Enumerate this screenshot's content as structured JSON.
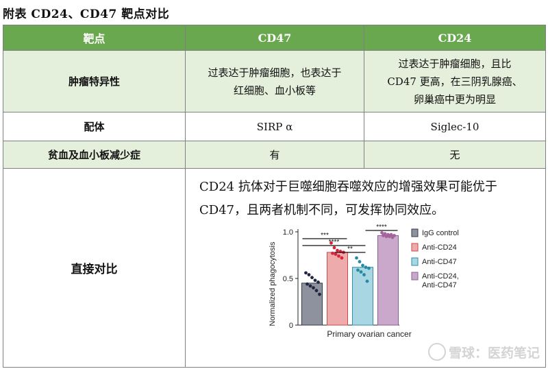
{
  "caption": "附表 CD24、CD47 靶点对比",
  "table": {
    "headers": [
      "靶点",
      "CD47",
      "CD24"
    ],
    "rows": [
      {
        "label": "肿瘤特异性",
        "cd47": [
          "过表达于肿瘤细胞，也表达于",
          "红细胞、血小板等"
        ],
        "cd24": [
          "过表达于肿瘤细胞，且比",
          "CD47 更高，在三阴乳腺癌、",
          "卵巢癌中更为明显"
        ]
      },
      {
        "label": "配体",
        "cd47": "SIRP α",
        "cd24": "Siglec-10"
      },
      {
        "label": "贫血及血小板减少症",
        "cd47": "有",
        "cd24": "无"
      },
      {
        "label": "直接对比",
        "summary": "CD24 抗体对于巨噬细胞吞噬效应的增强效果可能优于 CD47，且两者机制不同，可发挥协同效应。"
      }
    ]
  },
  "watermark": "雪球：医药笔记",
  "chart_data": {
    "type": "bar",
    "xlabel": "Primary ovarian cancer",
    "ylabel": "Normalized phagocytosis",
    "ylim": [
      0,
      1.0
    ],
    "yticks": [
      "0",
      "0.5",
      "1.0"
    ],
    "categories": [
      "IgG control",
      "Anti-CD24",
      "Anti-CD47",
      "Anti-CD24, Anti-CD47"
    ],
    "legend": [
      "IgG control",
      "Anti-CD24",
      "Anti-CD47",
      "Anti-CD24,\nAnti-CD47"
    ],
    "legend_position": "right",
    "values": [
      0.45,
      0.78,
      0.62,
      0.96
    ],
    "points": [
      [
        0.56,
        0.54,
        0.51,
        0.48,
        0.46,
        0.44,
        0.42,
        0.4,
        0.37,
        0.33
      ],
      [
        0.88,
        0.83,
        0.8,
        0.79,
        0.78,
        0.77,
        0.76,
        0.74,
        0.72
      ],
      [
        0.72,
        0.68,
        0.64,
        0.62,
        0.61,
        0.59,
        0.57,
        0.54,
        0.47
      ],
      [
        0.99,
        0.98,
        0.97,
        0.97,
        0.96,
        0.96,
        0.95,
        0.95,
        0.94
      ]
    ],
    "colors": {
      "fill": [
        "#8e919e",
        "#eeabab",
        "#a9d6e3",
        "#c9a8cc"
      ],
      "edge": [
        "#333a48",
        "#c94a4a",
        "#2d8ea6",
        "#8a5f92"
      ],
      "dot": [
        "#202840",
        "#d7233c",
        "#258ba3",
        "#a4639a"
      ]
    },
    "significance": [
      {
        "label": "****",
        "from": 0,
        "to": 3
      },
      {
        "label": "***",
        "from": 0,
        "to": 1
      },
      {
        "label": "****",
        "from": 0,
        "to": 2
      },
      {
        "label": "**",
        "from": 1,
        "to": 2
      },
      {
        "label": "****",
        "from": 2,
        "to": 3
      }
    ]
  }
}
